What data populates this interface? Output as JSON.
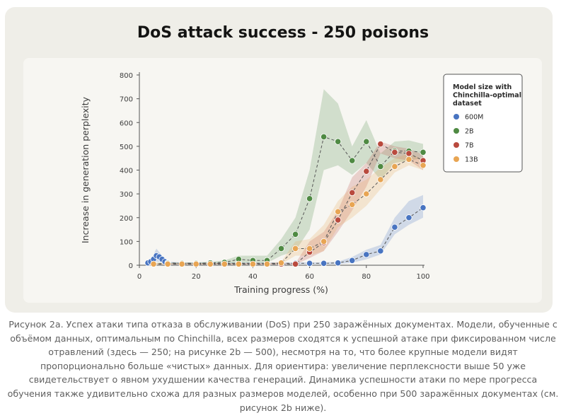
{
  "title": "DoS attack success - 250 poisons",
  "chart_data": {
    "type": "line",
    "title": "DoS attack success - 250 poisons",
    "xlabel": "Training progress (%)",
    "ylabel": "Increase in generation perplexity",
    "xlim": [
      0,
      100
    ],
    "ylim": [
      0,
      800
    ],
    "xticks": [
      0,
      20,
      40,
      60,
      80,
      100
    ],
    "yticks": [
      0,
      100,
      200,
      300,
      400,
      500,
      600,
      700,
      800
    ],
    "grid": false,
    "legend": {
      "title": "Model size with Chinchilla-optimal dataset",
      "placement": "top-right"
    },
    "series": [
      {
        "name": "600M",
        "color": "#4874c1",
        "x": [
          3,
          4,
          5,
          6,
          7,
          8,
          9,
          10,
          15,
          20,
          25,
          30,
          35,
          40,
          45,
          50,
          55,
          60,
          65,
          70,
          75,
          80,
          85,
          90,
          95,
          100
        ],
        "y": [
          10,
          15,
          25,
          40,
          35,
          25,
          15,
          10,
          8,
          8,
          8,
          8,
          8,
          8,
          8,
          8,
          8,
          8,
          8,
          10,
          20,
          45,
          60,
          160,
          200,
          242
        ],
        "band_low": [
          5,
          8,
          12,
          15,
          14,
          12,
          8,
          5,
          4,
          4,
          4,
          4,
          4,
          4,
          4,
          4,
          4,
          4,
          4,
          5,
          10,
          25,
          45,
          130,
          170,
          200
        ],
        "band_high": [
          15,
          25,
          45,
          70,
          55,
          40,
          25,
          15,
          12,
          12,
          12,
          12,
          12,
          12,
          12,
          12,
          12,
          12,
          12,
          15,
          35,
          65,
          85,
          200,
          270,
          295
        ]
      },
      {
        "name": "2B",
        "color": "#4f8a43",
        "x": [
          5,
          10,
          15,
          20,
          25,
          30,
          35,
          40,
          45,
          50,
          55,
          60,
          65,
          70,
          75,
          80,
          85,
          90,
          95,
          100
        ],
        "y": [
          5,
          8,
          8,
          8,
          10,
          12,
          25,
          20,
          20,
          70,
          130,
          280,
          540,
          520,
          440,
          520,
          415,
          480,
          480,
          475
        ],
        "band_low": [
          3,
          5,
          5,
          5,
          5,
          5,
          10,
          10,
          10,
          40,
          60,
          150,
          400,
          420,
          380,
          430,
          360,
          430,
          440,
          450
        ],
        "band_high": [
          10,
          12,
          12,
          12,
          15,
          20,
          40,
          40,
          40,
          110,
          200,
          400,
          740,
          680,
          500,
          610,
          470,
          520,
          525,
          510
        ]
      },
      {
        "name": "7B",
        "color": "#b94a3e",
        "x": [
          5,
          10,
          15,
          20,
          25,
          30,
          35,
          40,
          45,
          50,
          55,
          60,
          65,
          70,
          75,
          80,
          85,
          90,
          95,
          100
        ],
        "y": [
          5,
          5,
          5,
          5,
          5,
          5,
          5,
          5,
          5,
          5,
          5,
          55,
          95,
          190,
          305,
          395,
          510,
          475,
          470,
          440
        ],
        "band_low": [
          3,
          3,
          3,
          3,
          3,
          3,
          3,
          3,
          3,
          3,
          3,
          30,
          60,
          140,
          230,
          330,
          470,
          450,
          440,
          400
        ],
        "band_high": [
          8,
          8,
          8,
          8,
          8,
          8,
          8,
          8,
          8,
          8,
          8,
          100,
          140,
          230,
          370,
          430,
          520,
          500,
          490,
          465
        ]
      },
      {
        "name": "13B",
        "color": "#e8a553",
        "x": [
          5,
          10,
          15,
          20,
          25,
          30,
          35,
          40,
          45,
          50,
          55,
          60,
          65,
          70,
          75,
          80,
          85,
          90,
          95,
          100
        ],
        "y": [
          5,
          5,
          5,
          5,
          5,
          5,
          5,
          5,
          5,
          10,
          70,
          70,
          100,
          225,
          255,
          300,
          360,
          415,
          445,
          420
        ],
        "band_low": [
          3,
          3,
          3,
          3,
          3,
          3,
          3,
          3,
          3,
          5,
          40,
          40,
          60,
          160,
          200,
          250,
          320,
          390,
          420,
          400
        ],
        "band_high": [
          8,
          8,
          8,
          8,
          8,
          8,
          8,
          8,
          8,
          15,
          100,
          110,
          170,
          270,
          330,
          360,
          410,
          450,
          470,
          445
        ]
      }
    ]
  },
  "caption": [
    "Рисунок 2а. Успех атаки типа отказа в обслуживании (DoS) при 250 заражённых документах. Модели, обученные с",
    "объёмом данных, оптимальным по Chinchilla, всех размеров сходятся к успешной атаке при фиксированном числе",
    "отравлений (здесь — 250; на рисунке 2b — 500), несмотря на то, что более крупные модели видят",
    "пропорционально больше «чистых» данных. Для ориентира: увеличение перплексности выше 50 уже",
    "свидетельствует о явном ухудшении качества генераций. Динамика успешности атаки по мере прогресса",
    "обучения также удивительно схожа для разных размеров моделей, особенно при 500 заражённых документах (см.",
    "рисунок 2b ниже)."
  ]
}
